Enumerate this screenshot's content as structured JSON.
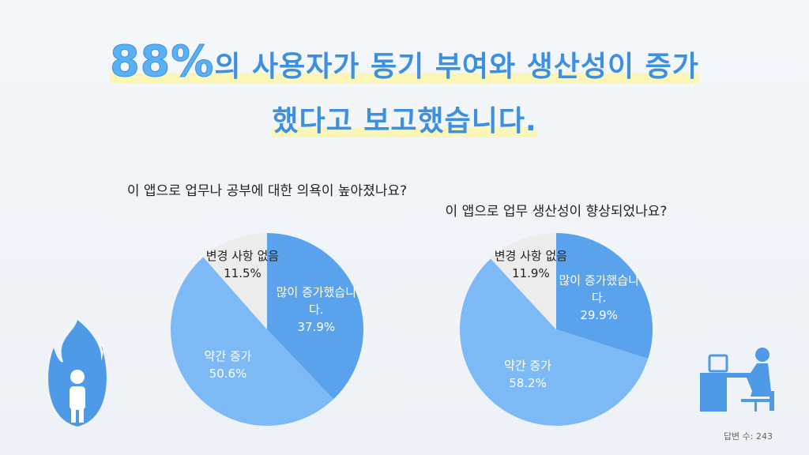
{
  "headline": {
    "emphasis": "88%",
    "line1": "의 사용자가 동기 부여와 생산성이 증가",
    "line2": "했다고 보고했습니다."
  },
  "footnote": "답변 수: 243",
  "chart_data": [
    {
      "type": "pie",
      "title": "이 앱으로 업무나 공부에 대한 의욕이 높아졌나요?",
      "categories": [
        "많이 증가했습니다.",
        "약간 증가",
        "변경 사항 없음"
      ],
      "values": [
        37.9,
        50.6,
        11.5
      ],
      "value_labels": [
        "37.9%",
        "50.6%",
        "11.5%"
      ],
      "colors": [
        "#5aa2ec",
        "#7dbaf5",
        "#ececec"
      ]
    },
    {
      "type": "pie",
      "title": "이 앱으로 업무 생산성이 향상되었나요?",
      "categories": [
        "많이 증가했습니다.",
        "약간 증가",
        "변경 사항 없음"
      ],
      "values": [
        29.9,
        58.2,
        11.9
      ],
      "value_labels": [
        "29.9%",
        "58.2%",
        "11.9%"
      ],
      "colors": [
        "#5aa2ec",
        "#7dbaf5",
        "#ececec"
      ]
    }
  ]
}
